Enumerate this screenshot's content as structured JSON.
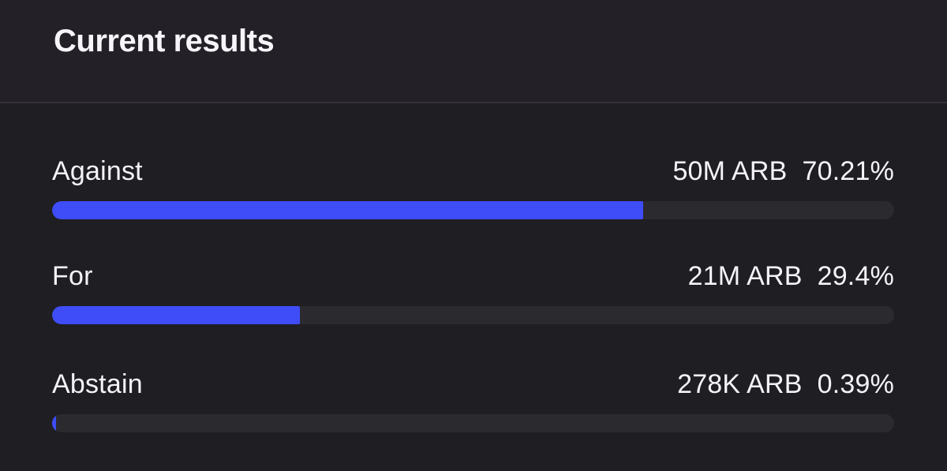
{
  "header": {
    "title": "Current results"
  },
  "results": {
    "unit": "ARB",
    "rows": [
      {
        "option": "Against",
        "amount": "50M ARB",
        "percent": "70.21%",
        "percent_value": 70.21
      },
      {
        "option": "For",
        "amount": "21M ARB",
        "percent": "29.4%",
        "percent_value": 29.4
      },
      {
        "option": "Abstain",
        "amount": "278K ARB",
        "percent": "0.39%",
        "percent_value": 0.39
      }
    ]
  },
  "colors": {
    "accent_bar": "#3e4df8",
    "bar_track": "#2b2a2f",
    "background": "#1f1e23",
    "header_background": "#232127",
    "divider": "#343138",
    "text": "#f5f3f6"
  },
  "chart_data": {
    "type": "bar",
    "orientation": "horizontal",
    "title": "Current results",
    "categories": [
      "Against",
      "For",
      "Abstain"
    ],
    "values": [
      70.21,
      29.4,
      0.39
    ],
    "value_labels": [
      "50M ARB",
      "21M ARB",
      "278K ARB"
    ],
    "xlim": [
      0,
      100
    ]
  }
}
